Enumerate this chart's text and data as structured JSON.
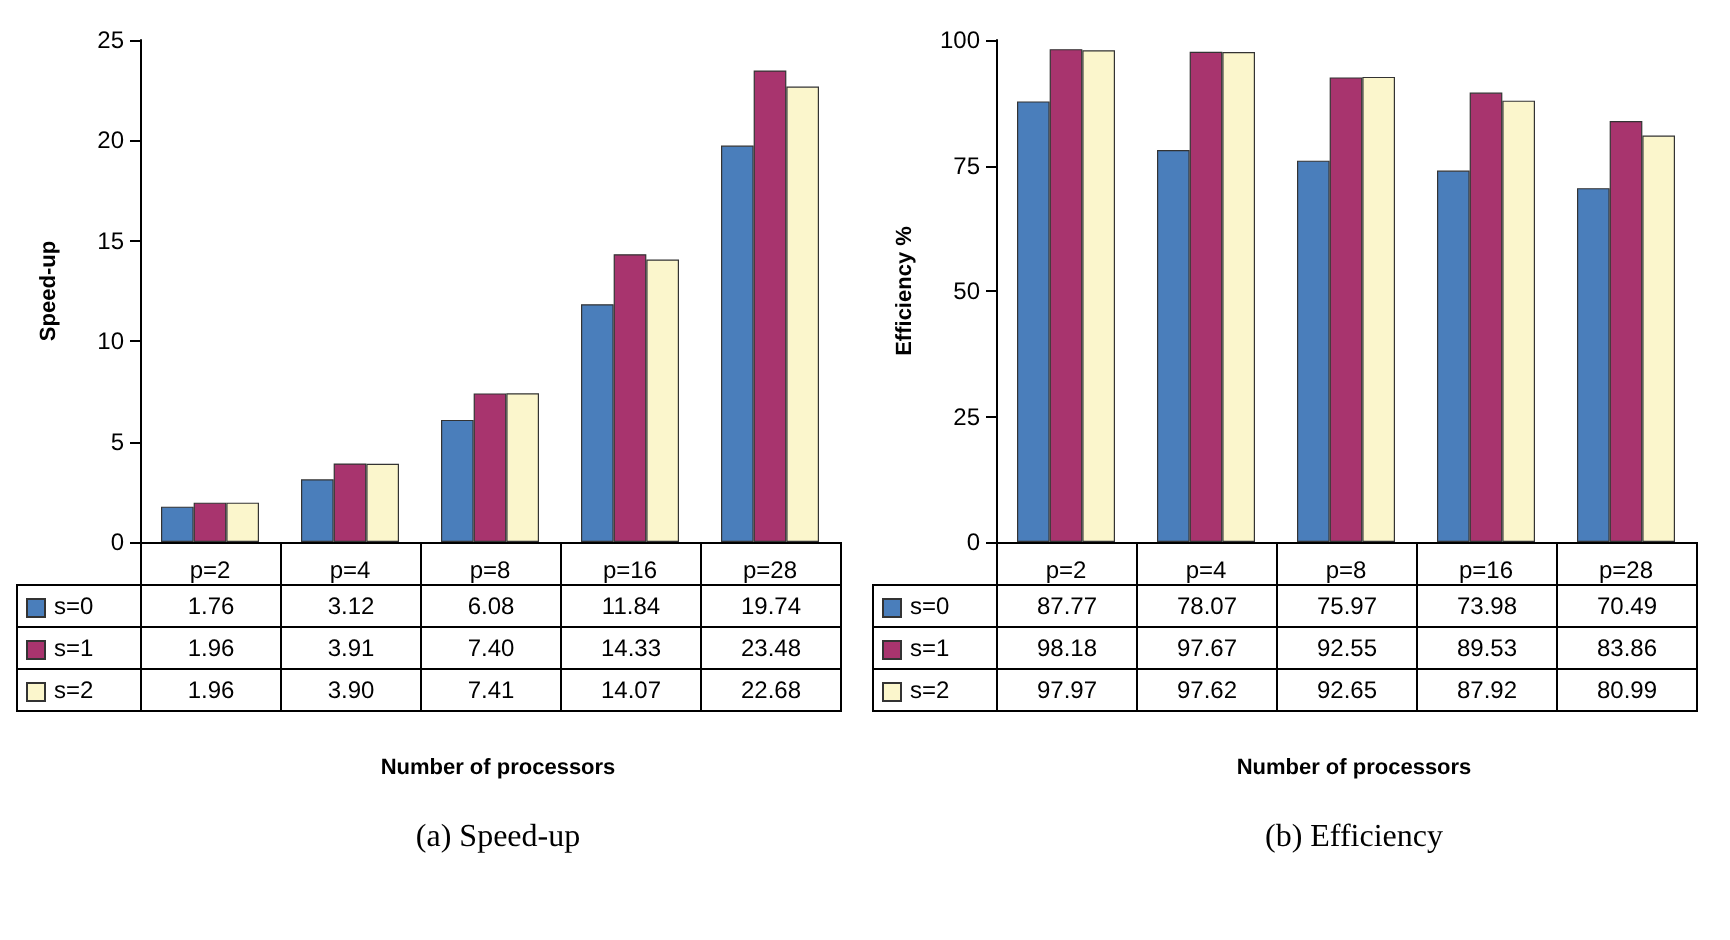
{
  "chart_data": [
    {
      "type": "bar",
      "ylabel": "Speed-up",
      "xlabel": "Number of processors",
      "categories": [
        "p=2",
        "p=4",
        "p=8",
        "p=16",
        "p=28"
      ],
      "series": [
        {
          "name": "s=0",
          "color": "#4a7ebb",
          "values": [
            1.76,
            3.12,
            6.08,
            11.84,
            19.74
          ],
          "value_labels": [
            "1.76",
            "3.12",
            "6.08",
            "11.84",
            "19.74"
          ]
        },
        {
          "name": "s=1",
          "color": "#a8346e",
          "values": [
            1.96,
            3.91,
            7.4,
            14.33,
            23.48
          ],
          "value_labels": [
            "1.96",
            "3.91",
            "7.40",
            "14.33",
            "23.48"
          ]
        },
        {
          "name": "s=2",
          "color": "#fbf6cc",
          "values": [
            1.96,
            3.9,
            7.41,
            14.07,
            22.68
          ],
          "value_labels": [
            "1.96",
            "3.90",
            "7.41",
            "14.07",
            "22.68"
          ]
        }
      ],
      "ylim": [
        0,
        25
      ],
      "yticks": [
        0,
        5,
        10,
        15,
        20,
        25
      ],
      "legend": "bottom",
      "annotations": [
        "(a) Speed-up"
      ]
    },
    {
      "type": "bar",
      "ylabel": "Efficiency %",
      "xlabel": "Number of processors",
      "categories": [
        "p=2",
        "p=4",
        "p=8",
        "p=16",
        "p=28"
      ],
      "series": [
        {
          "name": "s=0",
          "color": "#4a7ebb",
          "values": [
            87.77,
            78.07,
            75.97,
            73.98,
            70.49
          ]
        },
        {
          "name": "s=1",
          "color": "#a8346e",
          "values": [
            98.18,
            97.67,
            92.55,
            89.53,
            83.86
          ]
        },
        {
          "name": "s=2",
          "color": "#fbf6cc",
          "values": [
            97.97,
            97.62,
            92.65,
            87.92,
            80.99
          ]
        }
      ],
      "ylim": [
        0,
        100
      ],
      "yticks": [
        0,
        25,
        50,
        75,
        100
      ],
      "data_labels": true,
      "legend": "bottom",
      "annotations": [
        "(b) Efficiency"
      ]
    }
  ]
}
